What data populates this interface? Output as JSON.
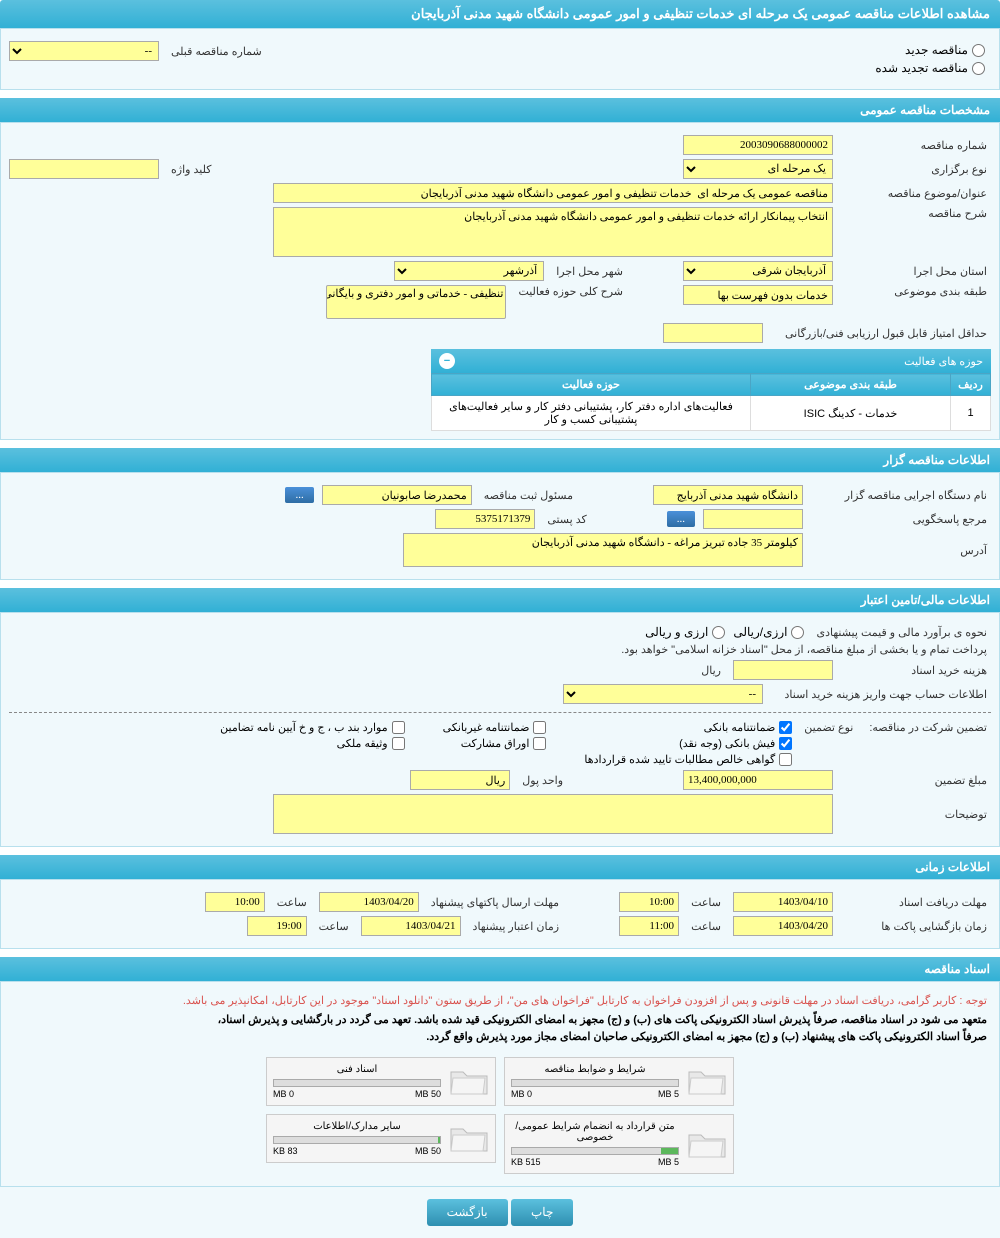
{
  "header": {
    "title": "مشاهده اطلاعات مناقصه عمومی یک مرحله ای خدمات تنظیفی و امور عمومی دانشگاه شهید مدنی آذربایجان"
  },
  "tender_type": {
    "new_label": "مناقصه جدید",
    "renewed_label": "مناقصه تجدید شده",
    "prev_number_label": "شماره مناقصه قبلی",
    "prev_number_placeholder": "--"
  },
  "general_info": {
    "section_title": "مشخصات مناقصه عمومی",
    "tender_number_label": "شماره مناقصه",
    "tender_number": "2003090688000002",
    "holding_type_label": "نوع برگزاری",
    "holding_type": "یک مرحله ای",
    "keyword_label": "کلید واژه",
    "keyword": "",
    "subject_label": "عنوان/موضوع مناقصه",
    "subject": "مناقصه عمومی یک مرحله ای  خدمات تنظیفی و امور عمومی دانشگاه شهید مدنی آذربایجان",
    "description_label": "شرح مناقصه",
    "description": "انتخاب پیمانکار ارائه خدمات تنظیفی و امور عمومی دانشگاه شهید مدنی آذربایجان",
    "province_label": "استان محل اجرا",
    "province": "آذربایجان شرقی",
    "city_label": "شهر محل اجرا",
    "city": "آذرشهر",
    "category_label": "طبقه بندی موضوعی",
    "category": "خدمات بدون فهرست بها",
    "activity_scope_label": "شرح کلی حوزه فعالیت",
    "activity_scope": "تنظیفی - خدماتی و امور دفتری و بایگانی و",
    "min_score_label": "حداقل امتیاز قابل قبول ارزیابی فنی/بازرگانی",
    "min_score": ""
  },
  "activity_fields": {
    "title": "حوزه های فعالیت",
    "columns": [
      "ردیف",
      "طبقه بندی موضوعی",
      "حوزه فعالیت"
    ],
    "rows": [
      [
        "1",
        "خدمات - کدینگ ISIC",
        "فعالیت‌های  اداره دفتر کار، پشتیبانی دفتر کار و سایر فعالیت‌های پشتیبانی کسب و کار"
      ]
    ]
  },
  "tenderer_info": {
    "section_title": "اطلاعات مناقصه گزار",
    "org_label": "نام دستگاه اجرایی مناقصه گزار",
    "org_name": "دانشگاه شهید مدنی آذربایج",
    "registrar_label": "مسئول ثبت مناقصه",
    "registrar_name": "محمدرضا صابونیان",
    "contact_label": "مرجع پاسخگویی",
    "contact": "",
    "postal_label": "کد پستی",
    "postal_code": "5375171379",
    "address_label": "آدرس",
    "address": "کیلومتر 35 جاده تبریز مراغه - دانشگاه شهید مدنی آذربایجان",
    "more_btn": "..."
  },
  "financial_info": {
    "section_title": "اطلاعات مالی/تامین اعتبار",
    "estimate_method_label": "نحوه ی برآورد مالی و قیمت پیشنهادی",
    "currency_rial": "ارزی/ریالی",
    "currency_foreign": "ارزی و ریالی",
    "treasury_note": "پرداخت تمام و یا بخشی از مبلغ مناقصه، از محل \"اسناد خزانه اسلامی\" خواهد بود.",
    "doc_cost_label": "هزینه خرید اسناد",
    "doc_cost_unit": "ریال",
    "doc_cost": "",
    "account_info_label": "اطلاعات حساب جهت واریز هزینه خرید اسناد",
    "account_placeholder": "--",
    "guarantee_label": "تضمین شرکت در مناقصه:",
    "guarantee_type_label": "نوع تضمین",
    "guarantee_types": {
      "bank_guarantee": "ضمانتنامه بانکی",
      "nonbank_guarantee": "ضمانتنامه غیربانکی",
      "regulations": "موارد بند ب ، ج و خ آیین نامه تضامین",
      "bank_receipt": "فیش بانکی (وجه نقد)",
      "securities": "اوراق مشارکت",
      "property": "وثیقه ملکی",
      "net_claims": "گواهی خالص مطالبات تایید شده قراردادها"
    },
    "guarantee_amount_label": "مبلغ تضمین",
    "guarantee_amount": "13,400,000,000",
    "currency_unit_label": "واحد پول",
    "currency_unit": "ریال",
    "notes_label": "توضیحات",
    "notes": ""
  },
  "time_info": {
    "section_title": "اطلاعات زمانی",
    "doc_receipt_label": "مهلت دریافت اسناد",
    "doc_receipt_date": "1403/04/10",
    "doc_receipt_time": "10:00",
    "envelope_send_label": "مهلت ارسال پاکتهای پیشنهاد",
    "envelope_send_date": "1403/04/20",
    "envelope_send_time": "10:00",
    "opening_label": "زمان بازگشایی پاکت ها",
    "opening_date": "1403/04/20",
    "opening_time": "11:00",
    "validity_label": "زمان اعتبار پیشنهاد",
    "validity_date": "1403/04/21",
    "validity_time": "19:00",
    "time_label": "ساعت"
  },
  "documents": {
    "section_title": "اسناد مناقصه",
    "notice_red": "توجه : کاربر گرامی، دریافت اسناد در مهلت قانونی و پس از افزودن فراخوان به کارتابل \"فراخوان های من\"، از طریق ستون \"دانلود اسناد\" موجود در این کارتابل، امکانپذیر می باشد.",
    "notice_black1": "متعهد می شود در اسناد مناقصه، صرفاً پذیرش اسناد الکترونیکی پاکت های (ب) و (ج) مجهز به امضای الکترونیکی قید شده باشد. تعهد می گردد در بارگشایی و پذیرش اسناد،",
    "notice_black2": "صرفاً اسناد الکترونیکی پاکت های پیشنهاد (ب) و (ج) مجهز به امضای الکترونیکی صاحبان امضای مجاز مورد پذیرش واقع گردد.",
    "files": [
      {
        "title": "شرایط و ضوابط مناقصه",
        "used": "0 MB",
        "max": "5 MB",
        "fill_pct": 0
      },
      {
        "title": "اسناد فنی",
        "used": "0 MB",
        "max": "50 MB",
        "fill_pct": 0
      },
      {
        "title": "متن قرارداد به انضمام شرایط عمومی/خصوصی",
        "used": "515 KB",
        "max": "5 MB",
        "fill_pct": 10
      },
      {
        "title": "سایر مدارک/اطلاعات",
        "used": "83 KB",
        "max": "50 MB",
        "fill_pct": 1
      }
    ]
  },
  "actions": {
    "print": "چاپ",
    "back": "بازگشت"
  },
  "colors": {
    "header_bg": "#5bc0de",
    "input_bg": "#ffff99",
    "content_bg": "#f0f9fc"
  }
}
